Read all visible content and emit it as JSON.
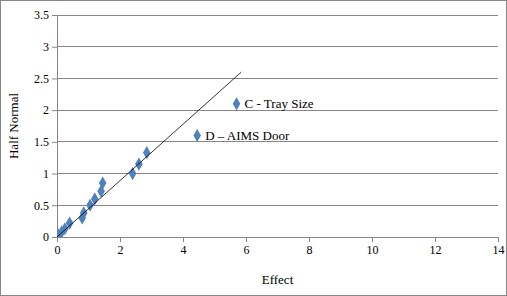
{
  "chart_data": {
    "type": "scatter",
    "x_label": "Effect",
    "y_label": "Half Normal",
    "xlim": [
      0,
      14
    ],
    "xticks": [
      0,
      2,
      4,
      6,
      8,
      10,
      12,
      14
    ],
    "ylim": [
      0,
      3.5
    ],
    "yticks": [
      0,
      0.5,
      1,
      1.5,
      2,
      2.5,
      3,
      3.5
    ],
    "grid": true,
    "series": [
      {
        "type": "scatter",
        "marker": "diamond",
        "color": "#4f81bd",
        "x": [
          0.05,
          0.15,
          0.25,
          0.4,
          0.8,
          0.85,
          1.05,
          1.2,
          1.4,
          1.45,
          2.4,
          2.6,
          2.85,
          4.45,
          5.7
        ],
        "values": [
          0.03,
          0.08,
          0.13,
          0.22,
          0.3,
          0.38,
          0.5,
          0.6,
          0.72,
          0.85,
          1.0,
          1.15,
          1.33,
          1.6,
          2.1
        ]
      },
      {
        "type": "line",
        "line_style": "solid",
        "color": "#000000",
        "x": [
          0,
          5.85
        ],
        "values": [
          0,
          2.6
        ]
      }
    ],
    "annotations": [
      {
        "text": "C - Tray Size",
        "x": 5.7,
        "y": 2.1
      },
      {
        "text": "D – AIMS Door",
        "x": 4.45,
        "y": 1.6
      }
    ]
  }
}
